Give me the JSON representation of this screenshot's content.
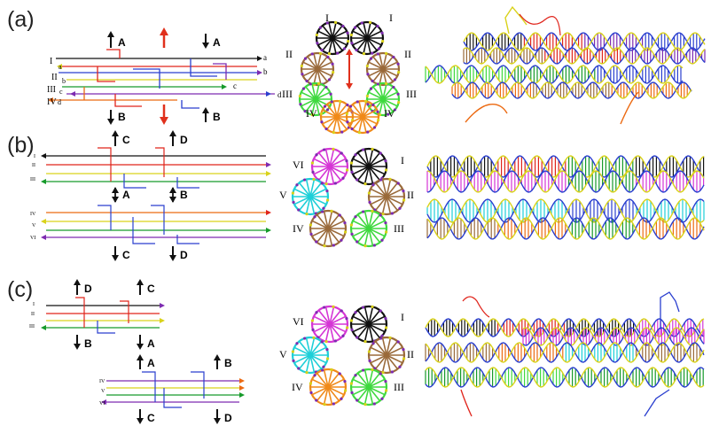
{
  "panels": [
    {
      "label": "(a)",
      "top": 8
    },
    {
      "label": "(b)",
      "top": 150
    },
    {
      "label": "(c)",
      "top": 313
    }
  ],
  "colors": {
    "black": "#111111",
    "red": "#e0241b",
    "blue": "#2a3fcf",
    "green": "#169a2a",
    "orange": "#ec6a12",
    "purple": "#7d2bb0",
    "yellow": "#d9d21a",
    "magenta": "#d536d5",
    "cyan": "#1ecfd8",
    "brown": "#9a6a3a",
    "lime": "#3fd93f",
    "orangeRing": "#f08a1a",
    "arrowRed": "#e0301c"
  },
  "panel_a": {
    "strand_labels": [
      "I",
      "a",
      "II",
      "b",
      "III",
      "c",
      "IV",
      "d"
    ],
    "end_labels": [
      "a",
      "b",
      "c",
      "d"
    ],
    "arrow_labels": [
      "A",
      "A",
      "B",
      "B"
    ],
    "ring_labels": [
      "I",
      "I",
      "II",
      "II",
      "III",
      "III",
      "IV",
      "IV"
    ]
  },
  "panel_b": {
    "top_labels": [
      "C",
      "D"
    ],
    "mid_labels": [
      "A",
      "B"
    ],
    "bottom_labels": [
      "C",
      "D"
    ],
    "row_labels_top": [
      "I",
      "II",
      "III"
    ],
    "row_labels_bottom": [
      "IV",
      "V",
      "VI"
    ],
    "ring_labels": [
      "VI",
      "I",
      "V",
      "II",
      "IV",
      "III"
    ]
  },
  "panel_c": {
    "top_labels": [
      "D",
      "C"
    ],
    "mid_labels": [
      "B",
      "A"
    ],
    "lower_top_labels": [
      "A",
      "B"
    ],
    "bottom_labels": [
      "C",
      "D"
    ],
    "row_labels_top": [
      "I",
      "II",
      "III"
    ],
    "row_labels_bottom": [
      "IV",
      "V",
      "VI"
    ],
    "ring_labels": [
      "VI",
      "I",
      "V",
      "II",
      "IV",
      "III"
    ]
  }
}
